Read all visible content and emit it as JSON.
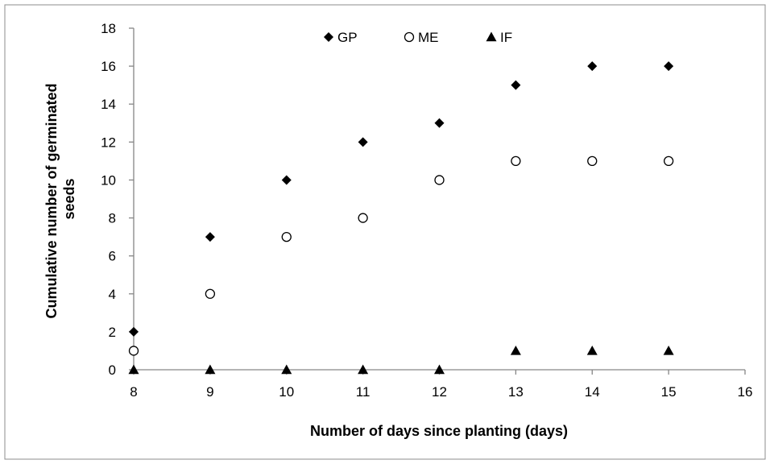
{
  "chart_data": {
    "type": "scatter",
    "title": "",
    "xlabel": "Number of days since planting (days)",
    "ylabel_lines": [
      "Cumulative number of germinated",
      "seeds"
    ],
    "xlim": [
      8,
      16
    ],
    "ylim": [
      0,
      18
    ],
    "x_ticks": [
      "8",
      "9",
      "10",
      "11",
      "12",
      "13",
      "14",
      "15",
      "16"
    ],
    "y_ticks": [
      "0",
      "2",
      "4",
      "6",
      "8",
      "10",
      "12",
      "14",
      "16",
      "18"
    ],
    "grid": false,
    "legend_position": "top-center",
    "x": [
      8,
      9,
      10,
      11,
      12,
      13,
      14,
      15
    ],
    "series": [
      {
        "name": "GP",
        "marker": "filled-diamond",
        "values": [
          2,
          7,
          10,
          12,
          13,
          15,
          16,
          16
        ]
      },
      {
        "name": "ME",
        "marker": "open-circle",
        "values": [
          1,
          4,
          7,
          8,
          10,
          11,
          11,
          11
        ]
      },
      {
        "name": "IF",
        "marker": "filled-triangle",
        "values": [
          0,
          0,
          0,
          0,
          0,
          1,
          1,
          1
        ]
      }
    ]
  }
}
